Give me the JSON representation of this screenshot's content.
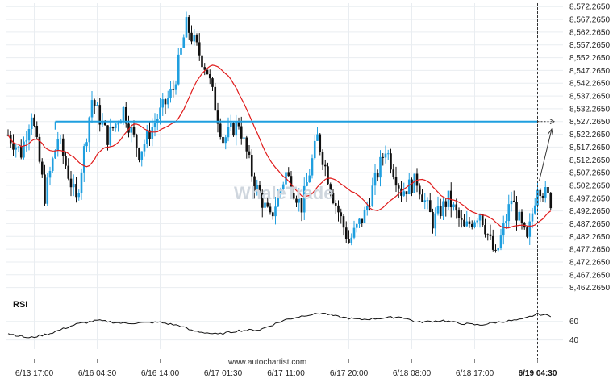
{
  "colors": {
    "bull": "#1f9fdf",
    "bear": "#111111",
    "ma": "#e01b1b",
    "level": "#1f9fdf",
    "projection": "#333333",
    "rsi": "#111111",
    "grid": "#e9edf1"
  },
  "chart_data": [
    {
      "type": "candlestick",
      "instrument_note": "",
      "title": "",
      "watermark": "WhaleTrade",
      "x_tick_labels": [
        "6/13 17:00",
        "6/16 04:30",
        "6/16 14:00",
        "6/17 01:30",
        "6/17 11:00",
        "6/17 20:00",
        "6/18 08:00",
        "6/18 17:00",
        "6/19 04:30"
      ],
      "x_tick_bar_index": [
        10,
        34,
        58,
        82,
        106,
        130,
        154,
        178,
        202
      ],
      "current_time_label": "6/19 04:30",
      "y_tick_labels": [
        "8,572.2650",
        "8,567.2650",
        "8,562.2650",
        "8,557.2650",
        "8,552.2650",
        "8,547.2650",
        "8,542.2650",
        "8,537.2650",
        "8,532.2650",
        "8,527.2650",
        "8,522.2650",
        "8,517.2650",
        "8,512.2650",
        "8,507.2650",
        "8,502.2650",
        "8,497.2650",
        "8,492.2650",
        "8,487.2650",
        "8,482.2650",
        "8,477.2650",
        "8,472.2650",
        "8,467.2650",
        "8,462.2650"
      ],
      "y_tick_values": [
        8572.265,
        8567.265,
        8562.265,
        8557.265,
        8552.265,
        8547.265,
        8542.265,
        8537.265,
        8532.265,
        8527.265,
        8522.265,
        8517.265,
        8512.265,
        8507.265,
        8502.265,
        8497.265,
        8492.265,
        8487.265,
        8482.265,
        8477.265,
        8472.265,
        8467.265,
        8462.265
      ],
      "ylim": [
        8459.3,
        8573.6
      ],
      "bar_count": 208,
      "resistance_level": 8527.265,
      "resistance_start_bar": 18,
      "projection": {
        "from_bar": 202,
        "from_value": 8504.0,
        "to_value": 8524.3
      },
      "anchors": [
        {
          "bar": 0,
          "value": 8522.0
        },
        {
          "bar": 5,
          "value": 8515.0
        },
        {
          "bar": 9,
          "value": 8531.0
        },
        {
          "bar": 14,
          "value": 8498.0
        },
        {
          "bar": 19,
          "value": 8521.0
        },
        {
          "bar": 26,
          "value": 8496.0
        },
        {
          "bar": 32,
          "value": 8536.0
        },
        {
          "bar": 38,
          "value": 8521.0
        },
        {
          "bar": 44,
          "value": 8532.0
        },
        {
          "bar": 50,
          "value": 8515.0
        },
        {
          "bar": 56,
          "value": 8527.0
        },
        {
          "bar": 63,
          "value": 8540.0
        },
        {
          "bar": 68,
          "value": 8565.0
        },
        {
          "bar": 76,
          "value": 8547.0
        },
        {
          "bar": 82,
          "value": 8520.0
        },
        {
          "bar": 88,
          "value": 8527.0
        },
        {
          "bar": 94,
          "value": 8503.0
        },
        {
          "bar": 100,
          "value": 8489.0
        },
        {
          "bar": 106,
          "value": 8507.0
        },
        {
          "bar": 112,
          "value": 8494.0
        },
        {
          "bar": 118,
          "value": 8521.0
        },
        {
          "bar": 124,
          "value": 8498.0
        },
        {
          "bar": 130,
          "value": 8480.0
        },
        {
          "bar": 136,
          "value": 8491.0
        },
        {
          "bar": 144,
          "value": 8517.0
        },
        {
          "bar": 150,
          "value": 8500.0
        },
        {
          "bar": 156,
          "value": 8504.0
        },
        {
          "bar": 162,
          "value": 8488.0
        },
        {
          "bar": 168,
          "value": 8497.0
        },
        {
          "bar": 174,
          "value": 8485.0
        },
        {
          "bar": 180,
          "value": 8492.0
        },
        {
          "bar": 186,
          "value": 8474.0
        },
        {
          "bar": 192,
          "value": 8497.0
        },
        {
          "bar": 198,
          "value": 8480.0
        },
        {
          "bar": 202,
          "value": 8503.0
        },
        {
          "bar": 207,
          "value": 8496.0
        }
      ],
      "ma_period": 20
    },
    {
      "type": "line",
      "title": "RSI",
      "y_tick_labels": [
        "60",
        "40"
      ],
      "y_tick_values": [
        60,
        40
      ],
      "ylim": [
        30,
        72
      ],
      "anchors": [
        {
          "bar": 0,
          "value": 47
        },
        {
          "bar": 8,
          "value": 42
        },
        {
          "bar": 16,
          "value": 47
        },
        {
          "bar": 26,
          "value": 57
        },
        {
          "bar": 34,
          "value": 61
        },
        {
          "bar": 44,
          "value": 58
        },
        {
          "bar": 58,
          "value": 59
        },
        {
          "bar": 66,
          "value": 55
        },
        {
          "bar": 70,
          "value": 50
        },
        {
          "bar": 80,
          "value": 46
        },
        {
          "bar": 88,
          "value": 50
        },
        {
          "bar": 96,
          "value": 51
        },
        {
          "bar": 106,
          "value": 62
        },
        {
          "bar": 114,
          "value": 67
        },
        {
          "bar": 120,
          "value": 69
        },
        {
          "bar": 126,
          "value": 65
        },
        {
          "bar": 134,
          "value": 62
        },
        {
          "bar": 150,
          "value": 65
        },
        {
          "bar": 156,
          "value": 59
        },
        {
          "bar": 166,
          "value": 61
        },
        {
          "bar": 172,
          "value": 58
        },
        {
          "bar": 180,
          "value": 56
        },
        {
          "bar": 186,
          "value": 59
        },
        {
          "bar": 196,
          "value": 62
        },
        {
          "bar": 202,
          "value": 68
        },
        {
          "bar": 207,
          "value": 66
        }
      ]
    }
  ],
  "footer": {
    "site": "www.autochartist.com"
  }
}
